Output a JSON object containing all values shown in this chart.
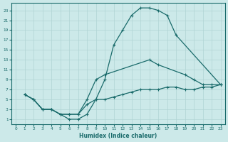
{
  "bg_color": "#cce9e9",
  "grid_color": "#b0d4d4",
  "line_color": "#1a6b6b",
  "xlabel": "Humidex (Indice chaleur)",
  "xlim": [
    -0.5,
    23.5
  ],
  "ylim": [
    0.0,
    24.5
  ],
  "xticks": [
    0,
    1,
    2,
    3,
    4,
    5,
    6,
    7,
    8,
    9,
    10,
    11,
    12,
    13,
    14,
    15,
    16,
    17,
    18,
    19,
    20,
    21,
    22,
    23
  ],
  "yticks": [
    1,
    3,
    5,
    7,
    9,
    11,
    13,
    15,
    17,
    19,
    21,
    23
  ],
  "curve1_x": [
    1,
    2,
    3,
    4,
    5,
    6,
    7,
    8,
    9,
    10,
    11,
    12,
    13,
    14,
    15,
    16,
    17,
    18,
    23
  ],
  "curve1_y": [
    6,
    5,
    3,
    3,
    2,
    1,
    1,
    2,
    5,
    9,
    16,
    19,
    22,
    23.5,
    23.5,
    23,
    22,
    18,
    8
  ],
  "curve2_x": [
    1,
    2,
    3,
    4,
    5,
    6,
    7,
    8,
    9,
    10,
    15,
    16,
    19,
    20,
    21,
    22,
    23
  ],
  "curve2_y": [
    6,
    5,
    3,
    3,
    2,
    2,
    2,
    5,
    9,
    10,
    13,
    12,
    10,
    9,
    8,
    8,
    8
  ],
  "curve3_x": [
    1,
    2,
    3,
    4,
    5,
    6,
    7,
    8,
    9,
    10,
    11,
    12,
    13,
    14,
    15,
    16,
    17,
    18,
    19,
    20,
    21,
    22,
    23
  ],
  "curve3_y": [
    6,
    5,
    3,
    3,
    2,
    2,
    2,
    4,
    5,
    5,
    5.5,
    6,
    6.5,
    7,
    7,
    7,
    7.5,
    7.5,
    7,
    7,
    7.5,
    7.5,
    8
  ]
}
